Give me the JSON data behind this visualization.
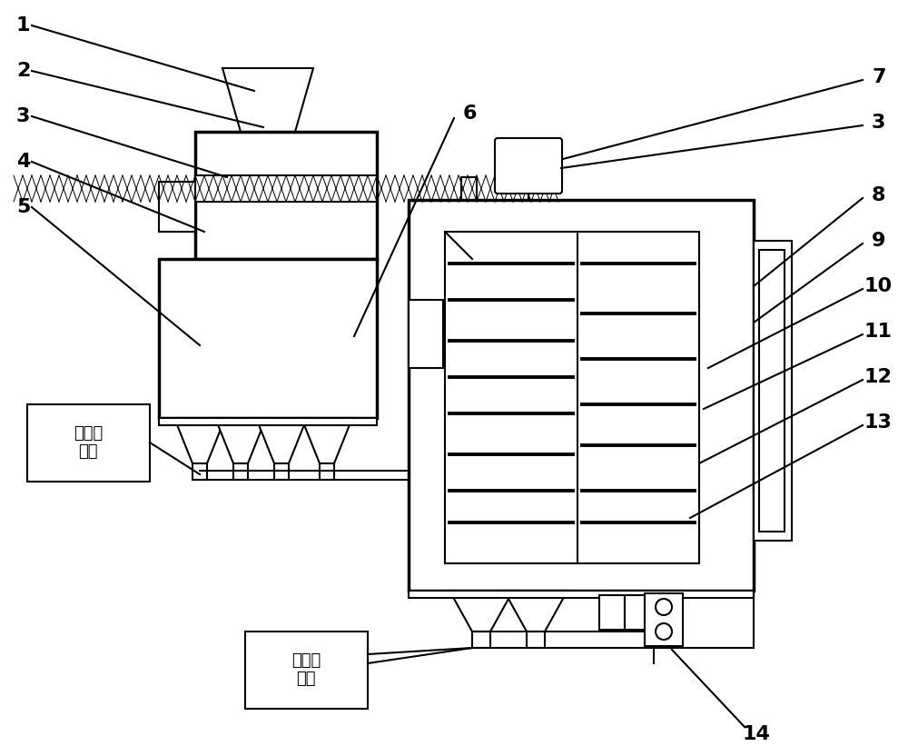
{
  "bg_color": "#ffffff",
  "line_color": "#000000",
  "lw": 1.5,
  "lw_thick": 2.5,
  "lw_thin": 0.8,
  "label_fs": 16,
  "cn_fs": 13,
  "box1_label": "超声频\n电源",
  "box2_label": "超声频\n电源"
}
